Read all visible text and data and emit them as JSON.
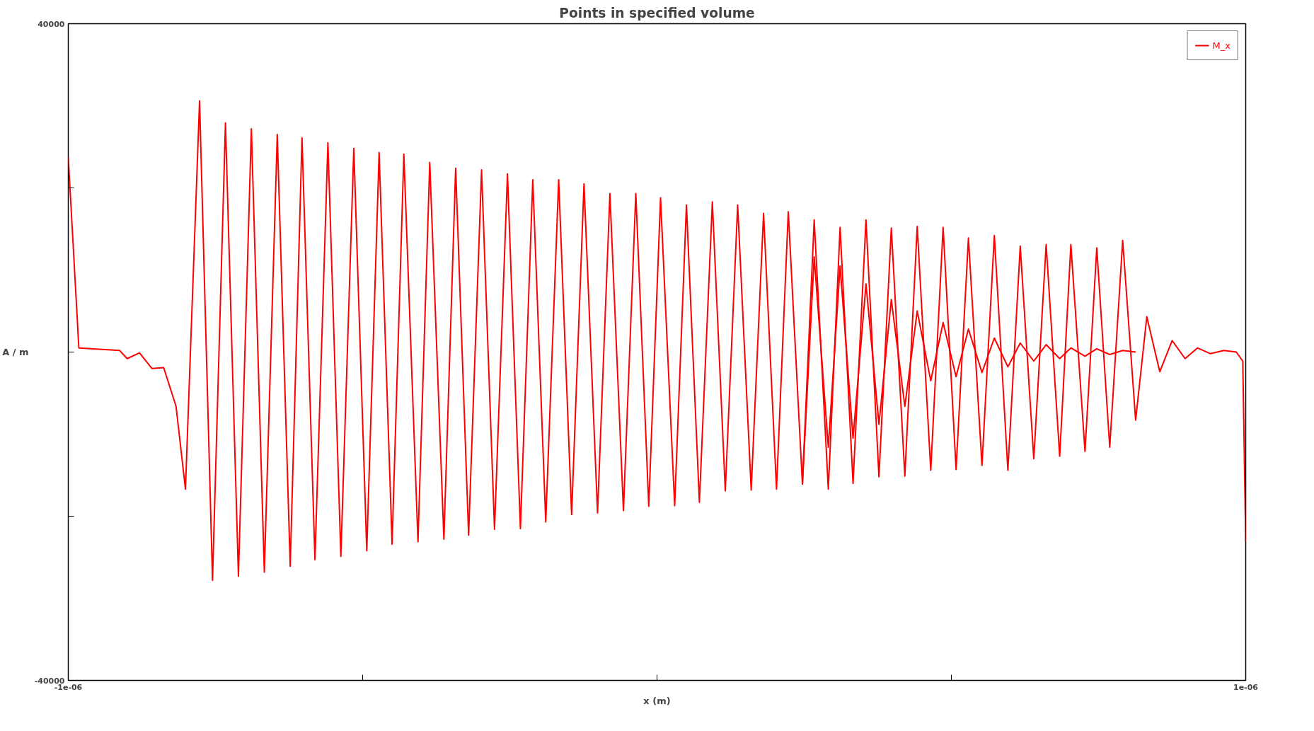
{
  "chart_data": {
    "type": "line",
    "title": "Points in specified volume",
    "xlabel": "x (m)",
    "ylabel": "A / m",
    "xlim": [
      -1e-06,
      1e-06
    ],
    "ylim": [
      -40000,
      40000
    ],
    "xticks": [
      {
        "value": -1e-06,
        "label": "-1e-06"
      },
      {
        "value": -5e-07,
        "label": null
      },
      {
        "value": 0,
        "label": null
      },
      {
        "value": 5e-07,
        "label": null
      },
      {
        "value": 1e-06,
        "label": "1e-06"
      }
    ],
    "yticks": [
      -40000,
      {
        "value": -20000,
        "label": null
      },
      {
        "value": 0,
        "label": null
      },
      {
        "value": 20000,
        "label": null
      },
      40000
    ],
    "grid": false,
    "legend": "top right",
    "marker": "none",
    "line_style": "solid",
    "series": [
      {
        "name": "M_x",
        "color": "#ff0000",
        "x": [
          -1e-06,
          -9.82e-07,
          -9.13e-07,
          -9e-07,
          -8.79e-07,
          -8.58e-07,
          -8.38e-07,
          -8.17e-07,
          -8.01e-07,
          -7.77e-07,
          -7.55e-07,
          -7.33e-07,
          -7.11e-07,
          -6.89e-07,
          -6.67e-07,
          -6.45e-07,
          -6.23e-07,
          -6.03e-07,
          -5.81e-07,
          -5.59e-07,
          -5.37e-07,
          -5.15e-07,
          -4.93e-07,
          -4.72e-07,
          -4.5e-07,
          -4.3e-07,
          -4.06e-07,
          -3.86e-07,
          -3.62e-07,
          -3.42e-07,
          -3.2e-07,
          -2.98e-07,
          -2.76e-07,
          -2.54e-07,
          -2.32e-07,
          -2.11e-07,
          -1.89e-07,
          -1.67e-07,
          -1.45e-07,
          -1.24e-07,
          -1.01e-07,
          -8e-08,
          -5.7e-08,
          -3.6e-08,
          -1.4e-08,
          6e-09,
          3e-08,
          5e-08,
          7.2e-08,
          9.4e-08,
          1.16e-07,
          1.37e-07,
          1.6e-07,
          1.81e-07,
          2.03e-07,
          2.23e-07,
          2.47e-07,
          2.67e-07,
          2.91e-07,
          3.11e-07,
          3.33e-07,
          3.55e-07,
          3.77e-07,
          3.98e-07,
          4.21e-07,
          4.42e-07,
          4.65e-07,
          4.86e-07,
          5.08e-07,
          5.29e-07,
          5.52e-07,
          5.73e-07,
          5.96e-07,
          6.17e-07,
          6.4e-07,
          6.61e-07,
          6.84e-07,
          7.03e-07,
          7.27e-07,
          7.47e-07,
          7.69e-07,
          7.91e-07,
          8.13e-07,
          8.32e-07,
          8.54e-07,
          8.75e-07,
          8.97e-07,
          9.18e-07,
          9.4e-07,
          9.63e-07,
          9.84e-07,
          9.95e-07,
          1e-06
        ],
        "values": [
          23700,
          500,
          200,
          -800,
          -100,
          -2000,
          -1900,
          -6600,
          -16700,
          30600,
          -27800,
          27900,
          -27300,
          27200,
          -26800,
          26500,
          -26100,
          26100,
          -25300,
          25500,
          -24900,
          24800,
          -24200,
          24300,
          -23400,
          24100,
          -23100,
          23100,
          -22800,
          22400,
          -22300,
          22200,
          -21600,
          21700,
          -21500,
          21000,
          -20700,
          21000,
          -19800,
          20500,
          -19600,
          19300,
          -19300,
          19300,
          -18800,
          18800,
          -18700,
          17900,
          -18300,
          18300,
          -16900,
          17900,
          -16800,
          16900,
          -16700,
          17100,
          -16100,
          16100,
          -16700,
          15200,
          -16000,
          16100,
          -15200,
          15100,
          -15100,
          15300,
          -14400,
          15200,
          -14300,
          13900,
          -13800,
          14200,
          -14400,
          12900,
          -13000,
          13100,
          -12700,
          13100,
          -12100,
          12700,
          -11600,
          13600,
          -8300,
          4300,
          -2400,
          1400,
          -800,
          500,
          -200,
          200,
          0,
          -1100,
          -23100
        ]
      },
      {
        "color": "#ff0000",
        "x": [
          2.47e-07,
          2.67e-07,
          2.91e-07,
          3.11e-07,
          3.33e-07,
          3.55e-07,
          3.77e-07,
          3.98e-07,
          4.21e-07,
          4.42e-07,
          4.65e-07,
          4.86e-07,
          5.08e-07,
          5.29e-07,
          5.52e-07,
          5.73e-07,
          5.96e-07,
          6.17e-07,
          6.4e-07,
          6.61e-07,
          6.84e-07,
          7.03e-07,
          7.27e-07,
          7.47e-07,
          7.69e-07,
          7.91e-07,
          8.13e-07
        ],
        "values": [
          -16100,
          11600,
          -11600,
          10500,
          -10500,
          8300,
          -8800,
          6400,
          -6600,
          5000,
          -3500,
          3600,
          -3000,
          2800,
          -2500,
          1700,
          -1800,
          1100,
          -1100,
          900,
          -800,
          500,
          -500,
          400,
          -300,
          200,
          0
        ]
      }
    ]
  }
}
